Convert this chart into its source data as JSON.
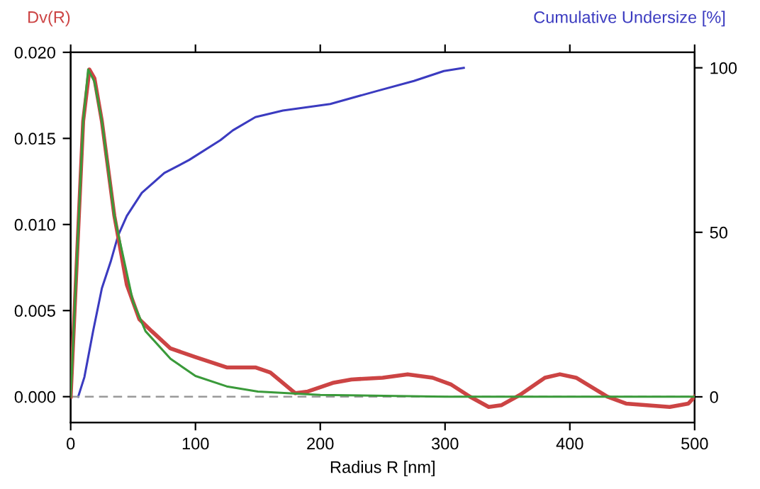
{
  "chart_data": {
    "type": "line",
    "xlabel": "Radius R [nm]",
    "ylabel": "Dv(R)",
    "y2label": "Cumulative Undersize [%]",
    "xlim": [
      0,
      500
    ],
    "xticks": [
      0,
      100,
      200,
      300,
      400,
      500
    ],
    "ylim": [
      -0.0015,
      0.02
    ],
    "yticks": [
      {
        "value": 0,
        "label": "0.000"
      },
      {
        "value": 0.005,
        "label": "0.005"
      },
      {
        "value": 0.01,
        "label": "0.010"
      },
      {
        "value": 0.015,
        "label": "0.015"
      },
      {
        "value": 0.02,
        "label": "0.020"
      }
    ],
    "y2lim": [
      -7.8,
      104.7
    ],
    "y2ticks": [
      0,
      50,
      100
    ],
    "grid": false,
    "legend": false,
    "series": [
      {
        "color": "#cc4444",
        "x": [
          0,
          5,
          10,
          15,
          19,
          25,
          35,
          45,
          55,
          65,
          80,
          100,
          125,
          148,
          160,
          180,
          190,
          210,
          225,
          250,
          270,
          290,
          305,
          320,
          335,
          345,
          360,
          380,
          392,
          405,
          430,
          445,
          480,
          495,
          500
        ],
        "values": [
          0,
          0.008,
          0.016,
          0.019,
          0.0185,
          0.016,
          0.0105,
          0.0065,
          0.0045,
          0.0038,
          0.0028,
          0.0023,
          0.0017,
          0.0017,
          0.0014,
          0.0002,
          0.0003,
          0.0008,
          0.001,
          0.0011,
          0.0013,
          0.0011,
          0.0007,
          0.0,
          -0.0006,
          -0.0005,
          0.0001,
          0.0011,
          0.0013,
          0.0011,
          0.0,
          -0.0004,
          -0.0006,
          -0.0004,
          0.0
        ]
      },
      {
        "color": "#3a9a3a",
        "x": [
          0,
          5,
          10,
          14,
          19,
          25,
          35,
          50,
          60,
          80,
          100,
          125,
          150,
          200,
          300,
          500
        ],
        "values": [
          0,
          0.008,
          0.016,
          0.019,
          0.0183,
          0.016,
          0.0105,
          0.0055,
          0.0038,
          0.0022,
          0.0012,
          0.0006,
          0.0003,
          0.0001,
          0,
          0
        ]
      },
      {
        "color": "#3b3bc0",
        "axis": "y2",
        "x": [
          6,
          11,
          18,
          25,
          32,
          38,
          45,
          57,
          75,
          95,
          120,
          130,
          148,
          170,
          208,
          246,
          275,
          299,
          315
        ],
        "values": [
          0,
          6,
          20,
          33,
          41,
          49,
          55,
          62,
          68,
          72,
          78,
          81,
          85,
          87,
          89,
          93,
          96,
          99,
          100
        ]
      }
    ],
    "ref_lines": [
      {
        "axis": "y",
        "value": 0,
        "color": "#999999",
        "line_style": "dashed"
      }
    ]
  }
}
